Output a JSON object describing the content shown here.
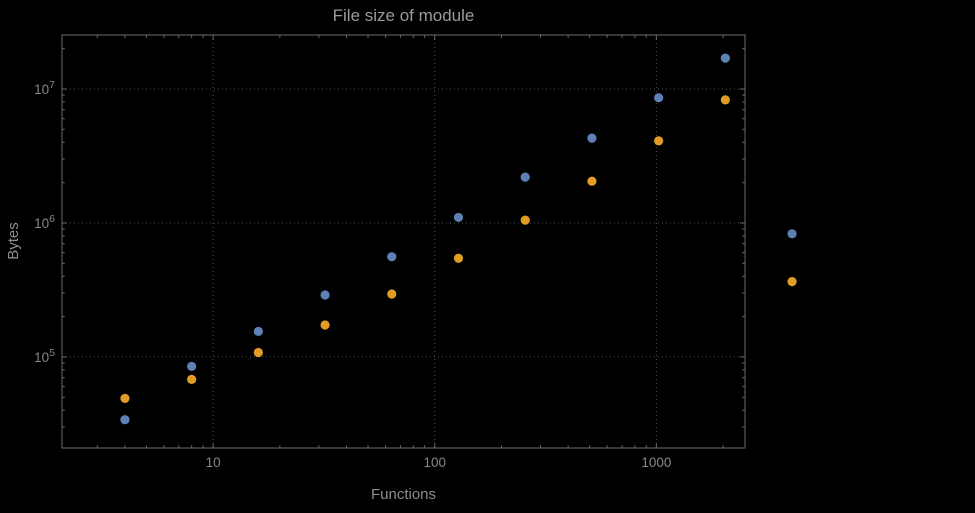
{
  "figure": {
    "background": "#000000"
  },
  "chart_data": {
    "type": "scatter",
    "title": "File size of module",
    "xlabel": "Functions",
    "ylabel": "Bytes",
    "x_scale": "log",
    "y_scale": "log",
    "grid": true,
    "legend": false,
    "x_range": [
      2.08,
      2512
    ],
    "y_range": [
      20900,
      25300000
    ],
    "x_ticks": [
      10,
      100,
      1000
    ],
    "x_tick_labels": [
      "10",
      "100",
      "1000"
    ],
    "y_ticks": [
      100000,
      1000000,
      10000000
    ],
    "y_tick_labels": [
      {
        "mantissa": "10",
        "exponent": "5"
      },
      {
        "mantissa": "10",
        "exponent": "6"
      },
      {
        "mantissa": "10",
        "exponent": "7"
      }
    ],
    "series": [
      {
        "name": "series-1-blue",
        "color": "#5e81b5",
        "x": [
          4,
          8,
          16,
          32,
          64,
          128,
          256,
          512,
          1024,
          2048,
          4096
        ],
        "y": [
          34000,
          85000,
          155000,
          290000,
          560000,
          1100000,
          2200000,
          4300000,
          8600000,
          17000000,
          830000
        ]
      },
      {
        "name": "series-2-orange",
        "color": "#e19c24",
        "x": [
          4,
          8,
          16,
          32,
          64,
          128,
          256,
          512,
          1024,
          2048,
          4096
        ],
        "y": [
          49000,
          68000,
          108000,
          173000,
          295000,
          545000,
          1050000,
          2050000,
          4100000,
          8300000,
          365000
        ]
      }
    ]
  }
}
